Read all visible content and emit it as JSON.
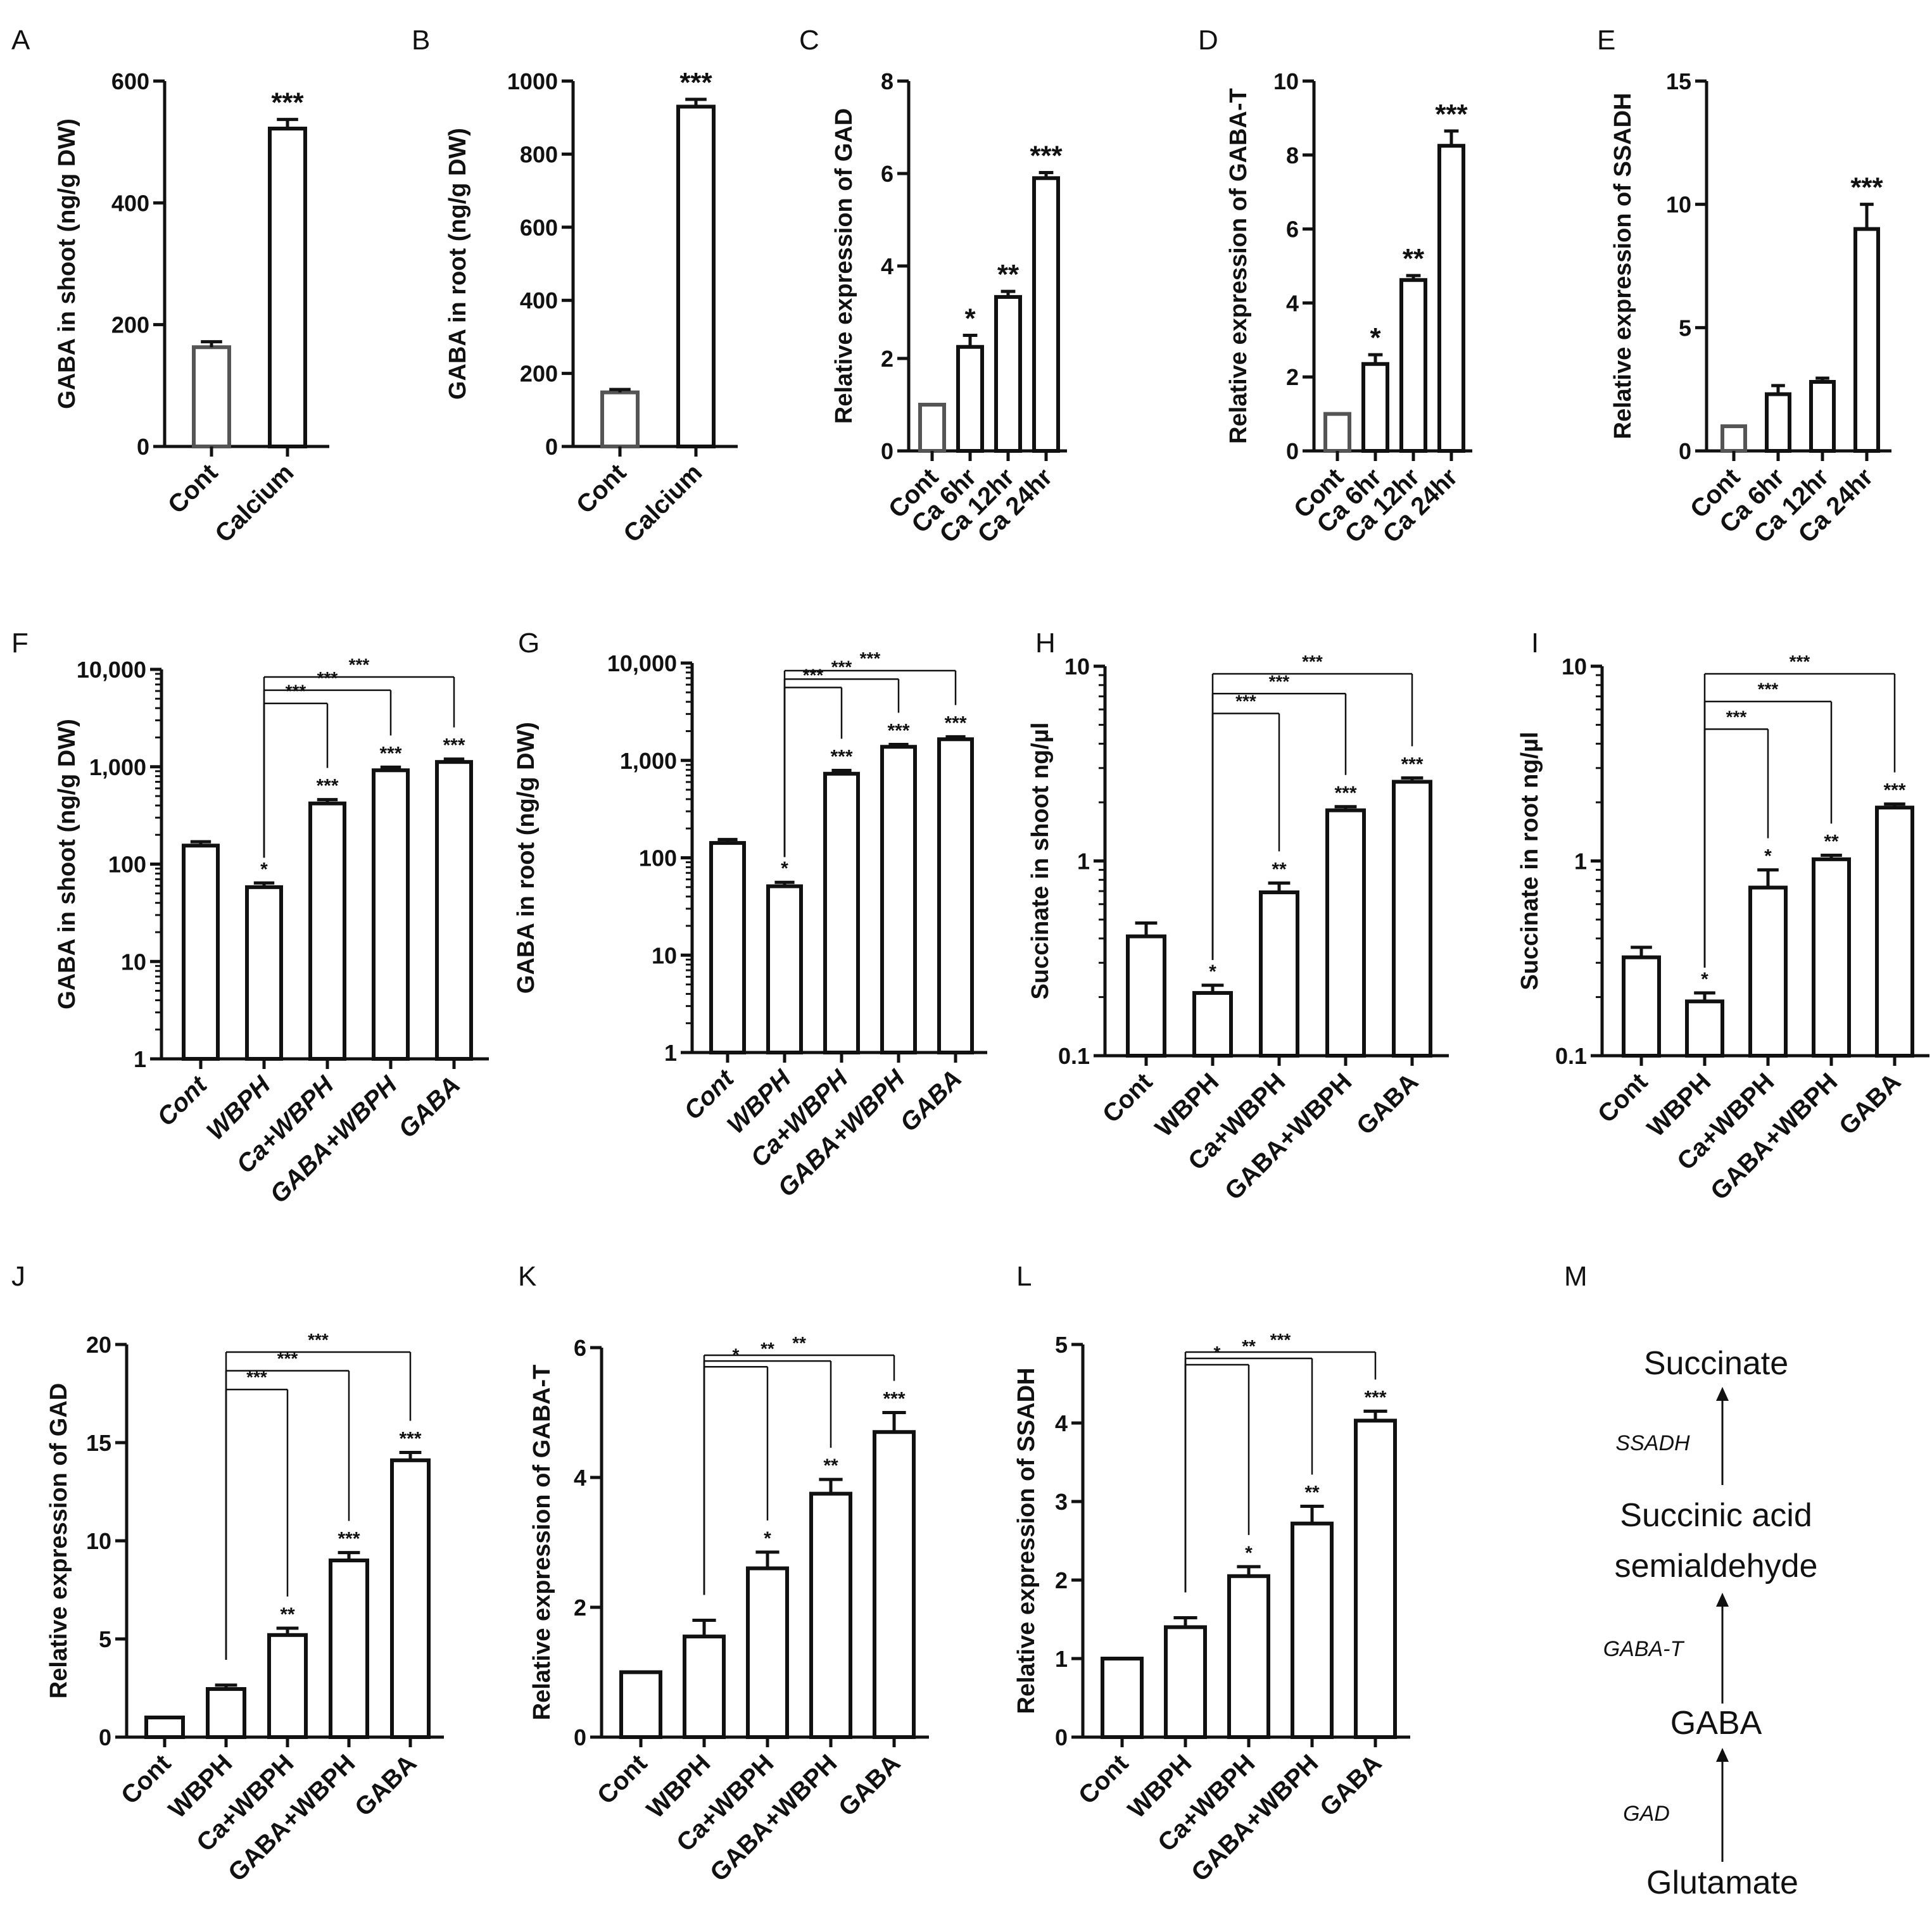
{
  "chart_data": [
    {
      "id": "A",
      "type": "bar",
      "ylabel": "GABA in shoot (ng/g DW)",
      "scale": "linear",
      "ylim": [
        0,
        600
      ],
      "yticks": [
        0,
        200,
        400,
        600
      ],
      "tick_labels": [
        "0",
        "200",
        "400",
        "600"
      ],
      "categories": [
        "Cont",
        "Calcium"
      ],
      "values": [
        163,
        522
      ],
      "errors": [
        9,
        15
      ],
      "stars": [
        "",
        "***"
      ],
      "comparisons": []
    },
    {
      "id": "B",
      "type": "bar",
      "ylabel": "GABA in root (ng/g DW)",
      "scale": "linear",
      "ylim": [
        0,
        1000
      ],
      "yticks": [
        0,
        200,
        400,
        600,
        800,
        1000
      ],
      "tick_labels": [
        "0",
        "200",
        "400",
        "600",
        "800",
        "1000"
      ],
      "categories": [
        "Cont",
        "Calcium"
      ],
      "values": [
        148,
        930
      ],
      "errors": [
        8,
        20
      ],
      "stars": [
        "",
        "***"
      ],
      "comparisons": []
    },
    {
      "id": "C",
      "type": "bar",
      "ylabel": "Relative expression of GAD",
      "scale": "linear",
      "ylim": [
        0,
        8
      ],
      "yticks": [
        0,
        2,
        4,
        6,
        8
      ],
      "tick_labels": [
        "0",
        "2",
        "4",
        "6",
        "8"
      ],
      "categories": [
        "Cont",
        "Ca 6hr",
        "Ca 12hr",
        "Ca 24hr"
      ],
      "values": [
        1.0,
        2.25,
        3.33,
        5.9
      ],
      "errors": [
        0,
        0.25,
        0.12,
        0.12
      ],
      "stars": [
        "",
        "*",
        "**",
        "***"
      ],
      "comparisons": []
    },
    {
      "id": "D",
      "type": "bar",
      "ylabel": "Relative expression of GABA-T",
      "scale": "linear",
      "ylim": [
        0,
        10
      ],
      "yticks": [
        0,
        2,
        4,
        6,
        8,
        10
      ],
      "tick_labels": [
        "0",
        "2",
        "4",
        "6",
        "8",
        "10"
      ],
      "categories": [
        "Cont",
        "Ca 6hr",
        "Ca 12hr",
        "Ca 24hr"
      ],
      "values": [
        1.0,
        2.35,
        4.62,
        8.25
      ],
      "errors": [
        0,
        0.25,
        0.12,
        0.4
      ],
      "stars": [
        "",
        "*",
        "**",
        "***"
      ],
      "comparisons": []
    },
    {
      "id": "E",
      "type": "bar",
      "ylabel": "Relative expression of SSADH",
      "scale": "linear",
      "ylim": [
        0,
        15
      ],
      "yticks": [
        0,
        5,
        10,
        15
      ],
      "tick_labels": [
        "0",
        "5",
        "10",
        "15"
      ],
      "categories": [
        "Cont",
        "Ca 6hr",
        "Ca 12hr",
        "Ca 24hr"
      ],
      "values": [
        1.0,
        2.3,
        2.8,
        9.0
      ],
      "errors": [
        0,
        0.35,
        0.15,
        1.0
      ],
      "stars": [
        "",
        "",
        "",
        "***"
      ],
      "comparisons": []
    },
    {
      "id": "F",
      "type": "bar",
      "ylabel": "GABA in shoot (ng/g DW)",
      "scale": "log",
      "ylim": [
        1,
        10000
      ],
      "yticks": [
        1,
        10,
        100,
        1000,
        10000
      ],
      "tick_labels": [
        "1",
        "10",
        "100",
        "1,000",
        "10,000"
      ],
      "categories": [
        "Cont",
        "WBPH",
        "Ca+WBPH",
        "GABA+WBPH",
        "GABA"
      ],
      "values": [
        155,
        58,
        420,
        920,
        1120
      ],
      "errors": [
        15,
        6,
        40,
        70,
        80
      ],
      "stars": [
        "",
        "*",
        "***",
        "***",
        "***"
      ],
      "comparisons": [
        {
          "from": 1,
          "to": 2,
          "label": "***"
        },
        {
          "from": 1,
          "to": 3,
          "label": "***"
        },
        {
          "from": 1,
          "to": 4,
          "label": "***"
        }
      ]
    },
    {
      "id": "G",
      "type": "bar",
      "ylabel": "GABA in root (ng/g DW)",
      "scale": "log",
      "ylim": [
        1,
        10000
      ],
      "yticks": [
        1,
        10,
        100,
        1000,
        10000
      ],
      "tick_labels": [
        "1",
        "10",
        "100",
        "1,000",
        "10,000"
      ],
      "categories": [
        "Cont",
        "WBPH",
        "Ca+WBPH",
        "GABA+WBPH",
        "GABA"
      ],
      "values": [
        142,
        51,
        730,
        1380,
        1650
      ],
      "errors": [
        12,
        5,
        60,
        80,
        100
      ],
      "stars": [
        "",
        "*",
        "***",
        "***",
        "***"
      ],
      "comparisons": [
        {
          "from": 1,
          "to": 2,
          "label": "***"
        },
        {
          "from": 1,
          "to": 3,
          "label": "***"
        },
        {
          "from": 1,
          "to": 4,
          "label": "***"
        }
      ]
    },
    {
      "id": "H",
      "type": "bar",
      "ylabel": "Succinate in shoot ng/µl",
      "scale": "log",
      "ylim": [
        0.1,
        10
      ],
      "yticks": [
        0.1,
        1,
        10
      ],
      "tick_labels": [
        "0.1",
        "1",
        "10"
      ],
      "categories": [
        "Cont",
        "WBPH",
        "Ca+WBPH",
        "GABA+WBPH",
        "GABA"
      ],
      "values": [
        0.41,
        0.21,
        0.69,
        1.82,
        2.55
      ],
      "errors": [
        0.07,
        0.02,
        0.08,
        0.08,
        0.12
      ],
      "stars": [
        "",
        "*",
        "**",
        "***",
        "***"
      ],
      "comparisons": [
        {
          "from": 1,
          "to": 2,
          "label": "***"
        },
        {
          "from": 1,
          "to": 3,
          "label": "***"
        },
        {
          "from": 1,
          "to": 4,
          "label": "***"
        }
      ]
    },
    {
      "id": "I",
      "type": "bar",
      "ylabel": "Succinate in root ng/µl",
      "scale": "log",
      "ylim": [
        0.1,
        10
      ],
      "yticks": [
        0.1,
        1,
        10
      ],
      "tick_labels": [
        "0.1",
        "1",
        "10"
      ],
      "categories": [
        "Cont",
        "WBPH",
        "Ca+WBPH",
        "GABA+WBPH",
        "GABA"
      ],
      "values": [
        0.32,
        0.19,
        0.73,
        1.02,
        1.88
      ],
      "errors": [
        0.04,
        0.02,
        0.17,
        0.05,
        0.08
      ],
      "stars": [
        "",
        "*",
        "*",
        "**",
        "***"
      ],
      "comparisons": [
        {
          "from": 1,
          "to": 2,
          "label": "***"
        },
        {
          "from": 1,
          "to": 3,
          "label": "***"
        },
        {
          "from": 1,
          "to": 4,
          "label": "***"
        }
      ]
    },
    {
      "id": "J",
      "type": "bar",
      "ylabel": "Relative expression of GAD",
      "scale": "linear",
      "ylim": [
        0,
        20
      ],
      "yticks": [
        0,
        5,
        10,
        15,
        20
      ],
      "tick_labels": [
        "0",
        "5",
        "10",
        "15",
        "20"
      ],
      "categories": [
        "Cont",
        "WBPH",
        "Ca+WBPH",
        "GABA+WBPH",
        "GABA"
      ],
      "values": [
        1.0,
        2.45,
        5.2,
        9.0,
        14.1
      ],
      "errors": [
        0,
        0.2,
        0.35,
        0.4,
        0.4
      ],
      "stars": [
        "",
        "",
        "**",
        "***",
        "***"
      ],
      "comparisons": [
        {
          "from": 1,
          "to": 2,
          "label": "***"
        },
        {
          "from": 1,
          "to": 3,
          "label": "***"
        },
        {
          "from": 1,
          "to": 4,
          "label": "***"
        }
      ]
    },
    {
      "id": "K",
      "type": "bar",
      "ylabel": "Relative expression of GABA-T",
      "scale": "linear",
      "ylim": [
        0,
        6
      ],
      "yticks": [
        0,
        2,
        4,
        6
      ],
      "tick_labels": [
        "0",
        "2",
        "4",
        "6"
      ],
      "categories": [
        "Cont",
        "WBPH",
        "Ca+WBPH",
        "GABA+WBPH",
        "GABA"
      ],
      "values": [
        1.0,
        1.55,
        2.6,
        3.75,
        4.7
      ],
      "errors": [
        0,
        0.25,
        0.25,
        0.22,
        0.3
      ],
      "stars": [
        "",
        "",
        "*",
        "**",
        "***"
      ],
      "comparisons": [
        {
          "from": 1,
          "to": 2,
          "label": "*"
        },
        {
          "from": 1,
          "to": 3,
          "label": "**"
        },
        {
          "from": 1,
          "to": 4,
          "label": "**"
        }
      ]
    },
    {
      "id": "L",
      "type": "bar",
      "ylabel": "Relative expression of SSADH",
      "scale": "linear",
      "ylim": [
        0,
        5
      ],
      "yticks": [
        0,
        1,
        2,
        3,
        4,
        5
      ],
      "tick_labels": [
        "0",
        "1",
        "2",
        "3",
        "4",
        "5"
      ],
      "categories": [
        "Cont",
        "WBPH",
        "Ca+WBPH",
        "GABA+WBPH",
        "GABA"
      ],
      "values": [
        1.0,
        1.4,
        2.05,
        2.72,
        4.03
      ],
      "errors": [
        0,
        0.12,
        0.12,
        0.22,
        0.12
      ],
      "stars": [
        "",
        "",
        "*",
        "**",
        "***"
      ],
      "comparisons": [
        {
          "from": 1,
          "to": 2,
          "label": "*"
        },
        {
          "from": 1,
          "to": 3,
          "label": "**"
        },
        {
          "from": 1,
          "to": 4,
          "label": "***"
        }
      ]
    }
  ],
  "pathway": {
    "panel_label": "M",
    "compounds": [
      "Succinate",
      "Succinic acid",
      "semialdehyde",
      "GABA",
      "Glutamate"
    ],
    "enzymes": [
      "SSADH",
      "GABA-T",
      "GAD"
    ]
  }
}
